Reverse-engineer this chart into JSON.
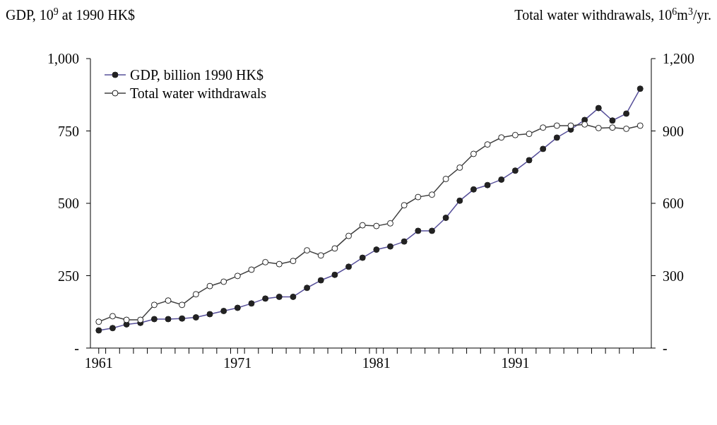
{
  "chart_data": {
    "type": "line",
    "ylabel": "GDP, 10$^{9}$ at 1990 HK$",
    "y2label": "Total water withdrawals, 10$^{6}$m$^{3}$/yr.",
    "x": [
      1961,
      1962,
      1963,
      1964,
      1965,
      1966,
      1967,
      1968,
      1969,
      1970,
      1971,
      1972,
      1973,
      1974,
      1975,
      1976,
      1977,
      1978,
      1979,
      1980,
      1981,
      1982,
      1983,
      1984,
      1985,
      1986,
      1987,
      1988,
      1989,
      1990,
      1991,
      1992,
      1993,
      1994,
      1995,
      1996,
      1997,
      1998,
      1999,
      2000
    ],
    "series": [
      {
        "name": "GDP, billion 1990 HK$",
        "color": "#57509a",
        "values": [
          61,
          69,
          82,
          87,
          100,
          100,
          102,
          106,
          117,
          128,
          139,
          154,
          171,
          177,
          177,
          208,
          234,
          253,
          281,
          312,
          340,
          351,
          368,
          405,
          405,
          450,
          509,
          548,
          563,
          582,
          613,
          649,
          688,
          727,
          755,
          788,
          829,
          786,
          810,
          896
        ]
      },
      {
        "name": "Total water withdrawals",
        "color": "#404040",
        "axis": "y2",
        "values": [
          109,
          132,
          117,
          117,
          179,
          197,
          179,
          223,
          257,
          275,
          299,
          325,
          356,
          348,
          361,
          405,
          384,
          413,
          465,
          509,
          506,
          517,
          592,
          626,
          636,
          701,
          748,
          805,
          844,
          873,
          883,
          888,
          914,
          922,
          922,
          927,
          912,
          914,
          909,
          922
        ]
      }
    ],
    "xlim": [
      1960.4,
      2000.8
    ],
    "xticks": [
      1961,
      {
        "value": 1961.5,
        "label": null
      },
      {
        "value": 1962.5,
        "label": null
      },
      {
        "value": 1963.5,
        "label": null
      },
      {
        "value": 1964.5,
        "label": null
      },
      {
        "value": 1965.5,
        "label": null
      },
      {
        "value": 1966.5,
        "label": null
      },
      {
        "value": 1967.5,
        "label": null
      },
      {
        "value": 1968.5,
        "label": null
      },
      {
        "value": 1969.5,
        "label": null
      },
      {
        "value": 1970.5,
        "label": null
      },
      1971,
      {
        "value": 1971.5,
        "label": null
      },
      {
        "value": 1972.5,
        "label": null
      },
      {
        "value": 1973.5,
        "label": null
      },
      {
        "value": 1974.5,
        "label": null
      },
      {
        "value": 1975.5,
        "label": null
      },
      {
        "value": 1976.5,
        "label": null
      },
      {
        "value": 1977.5,
        "label": null
      },
      {
        "value": 1978.5,
        "label": null
      },
      {
        "value": 1979.5,
        "label": null
      },
      {
        "value": 1980.5,
        "label": null
      },
      1981,
      {
        "value": 1981.5,
        "label": null
      },
      {
        "value": 1982.5,
        "label": null
      },
      {
        "value": 1983.5,
        "label": null
      },
      {
        "value": 1984.5,
        "label": null
      },
      {
        "value": 1985.5,
        "label": null
      },
      {
        "value": 1986.5,
        "label": null
      },
      {
        "value": 1987.5,
        "label": null
      },
      {
        "value": 1988.5,
        "label": null
      },
      {
        "value": 1989.5,
        "label": null
      },
      {
        "value": 1990.5,
        "label": null
      },
      1991,
      {
        "value": 1991.5,
        "label": null
      },
      {
        "value": 1992.5,
        "label": null
      },
      {
        "value": 1993.5,
        "label": null
      },
      {
        "value": 1994.5,
        "label": null
      },
      {
        "value": 1995.5,
        "label": null
      },
      {
        "value": 1996.5,
        "label": null
      },
      {
        "value": 1997.5,
        "label": null
      },
      {
        "value": 1998.5,
        "label": null
      },
      {
        "value": 1999.5,
        "label": null
      }
    ],
    "ylim": [
      0,
      1000
    ],
    "yticks": [
      {
        "value": 0,
        "label": "-"
      },
      250,
      500,
      750,
      {
        "value": 1000,
        "label": "1,000"
      }
    ],
    "y2lim": [
      0,
      1200
    ],
    "y2ticks": [
      {
        "value": 0,
        "label": "-"
      },
      300,
      600,
      900,
      {
        "value": 1200,
        "label": "1,200"
      }
    ],
    "grid": false,
    "legend": "top left",
    "marker": "circle",
    "line_style": "solid"
  }
}
